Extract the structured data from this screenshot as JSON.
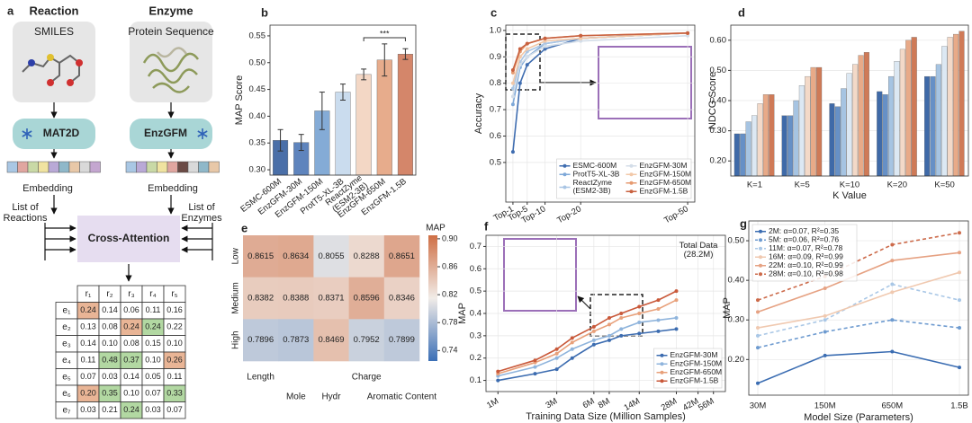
{
  "diagram": {
    "panel": "a",
    "reaction_title": "Reaction",
    "enzyme_title": "Enzyme",
    "reaction_input": "SMILES",
    "enzyme_input": "Protein Sequence",
    "reaction_encoder": "MAT2D",
    "enzyme_encoder": "EnzGFM",
    "reaction_embedding": "Embedding",
    "enzyme_embedding": "Embedding",
    "reaction_list": "List of\nReactions",
    "enzyme_list": "List of\nEnzymes",
    "attention": "Cross-Attention",
    "table": {
      "columns": [
        "r₁",
        "r₂",
        "r₃",
        "r₄",
        "r₅"
      ],
      "rows": [
        "e₁",
        "e₂",
        "e₃",
        "e₄",
        "e₅",
        "e₆",
        "e₇"
      ],
      "values": [
        [
          "0.24",
          "0.14",
          "0.06",
          "0.11",
          "0.16"
        ],
        [
          "0.13",
          "0.08",
          "0.24",
          "0.24",
          "0.22"
        ],
        [
          "0.14",
          "0.10",
          "0.08",
          "0.15",
          "0.10"
        ],
        [
          "0.11",
          "0.48",
          "0.37",
          "0.10",
          "0.26"
        ],
        [
          "0.07",
          "0.03",
          "0.14",
          "0.05",
          "0.11"
        ],
        [
          "0.20",
          "0.35",
          "0.10",
          "0.07",
          "0.33"
        ],
        [
          "0.03",
          "0.21",
          "0.24",
          "0.03",
          "0.07"
        ]
      ],
      "cell_colors": [
        [
          "#e9b596",
          null,
          null,
          null,
          null
        ],
        [
          null,
          null,
          "#e9b596",
          "#b2d8a2",
          null
        ],
        [
          null,
          null,
          null,
          null,
          null
        ],
        [
          null,
          "#b2d8a2",
          "#b2d8a2",
          null,
          "#e9b596"
        ],
        [
          null,
          null,
          null,
          null,
          null
        ],
        [
          "#e9b596",
          "#b2d8a2",
          null,
          null,
          "#b2d8a2"
        ],
        [
          null,
          null,
          "#b2d8a2",
          null,
          null
        ]
      ]
    }
  },
  "chart_data": [
    {
      "type": "bar",
      "panel": "b",
      "ylabel": "MAP Score",
      "categories": [
        "ESMC-600M",
        "EnzGFM-30M",
        "EnzGFM-150M",
        "ProtT5-XL-3B",
        "ReactZyme\n(ESM2-3B)",
        "EnzGFM-650M",
        "EnzGFM-1.5B"
      ],
      "values": [
        0.355,
        0.351,
        0.41,
        0.445,
        0.478,
        0.505,
        0.516
      ],
      "errors": [
        0.02,
        0.015,
        0.035,
        0.015,
        0.01,
        0.03,
        0.01
      ],
      "colors": [
        "#4a6fa8",
        "#5e84bd",
        "#84abd6",
        "#cadcee",
        "#f3d7c5",
        "#e7ac8c",
        "#d4866a"
      ],
      "ylim": [
        0.29,
        0.57
      ],
      "yticks": [
        {
          "value": 0.3,
          "label": "0.30"
        },
        0.35,
        {
          "value": 0.4,
          "label": "0.40"
        },
        0.45,
        {
          "value": 0.5,
          "label": "0.50"
        },
        0.55
      ],
      "annotation": "***"
    },
    {
      "type": "line",
      "panel": "c",
      "ylabel": "Accuracy",
      "x": [
        1,
        3,
        5,
        10,
        20,
        50
      ],
      "xlim": [
        -1,
        52
      ],
      "xticks": [
        {
          "value": 1,
          "label": "Top-1"
        },
        {
          "value": 5,
          "label": "Top-5"
        },
        {
          "value": 10,
          "label": "Top-10"
        },
        {
          "value": 20,
          "label": "Top-20"
        },
        {
          "value": 50,
          "label": "Top-50"
        }
      ],
      "ylim": [
        0.35,
        1.02
      ],
      "yticks": [
        0.5,
        0.6,
        0.7,
        0.8,
        0.9,
        {
          "value": 1,
          "label": "1.0"
        }
      ],
      "grid": true,
      "legend": "lower right",
      "legend_ncol": 2,
      "series": [
        {
          "name": "ESMC-600M",
          "color": "#3f6db0",
          "values": [
            0.54,
            0.8,
            0.87,
            0.93,
            0.97,
            0.99
          ]
        },
        {
          "name": "ProtT5-XL-3B",
          "color": "#7ea8d8",
          "values": [
            0.72,
            0.86,
            0.9,
            0.95,
            0.97,
            0.99
          ]
        },
        {
          "name": "ReactZyme\n(ESM2-3B)",
          "color": "#a9c5e4",
          "values": [
            0.78,
            0.88,
            0.92,
            0.95,
            0.97,
            0.99
          ]
        },
        {
          "name": "EnzGFM-30M",
          "color": "#d3dde8",
          "values": [
            0.75,
            0.87,
            0.9,
            0.94,
            0.96,
            0.98
          ]
        },
        {
          "name": "EnzGFM-150M",
          "color": "#f2c8a8",
          "values": [
            0.8,
            0.9,
            0.93,
            0.96,
            0.97,
            0.99
          ]
        },
        {
          "name": "EnzGFM-650M",
          "color": "#e69a70",
          "values": [
            0.84,
            0.92,
            0.95,
            0.97,
            0.98,
            0.99
          ]
        },
        {
          "name": "EnzGFM-1.5B",
          "color": "#c8613f",
          "values": [
            0.85,
            0.93,
            0.95,
            0.97,
            0.98,
            0.99
          ]
        }
      ]
    },
    {
      "type": "bar",
      "panel": "d",
      "xlabel": "K Value",
      "ylabel": "NDCG Score",
      "categories": [
        "K=1",
        "K=5",
        "K=10",
        "K=20",
        "K=50"
      ],
      "ylim": [
        0.15,
        0.65
      ],
      "yticks": [
        {
          "value": 0.2,
          "label": "0.20"
        },
        {
          "value": 0.3,
          "label": "0.30"
        },
        {
          "value": 0.4,
          "label": "0.40"
        },
        {
          "value": 0.5,
          "label": "0.50"
        },
        {
          "value": 0.6,
          "label": "0.60"
        }
      ],
      "grid": true,
      "series": [
        {
          "color": "#3f6aa8",
          "values": [
            0.29,
            0.35,
            0.39,
            0.43,
            0.48
          ]
        },
        {
          "color": "#6690c6",
          "values": [
            0.29,
            0.35,
            0.38,
            0.42,
            0.48
          ]
        },
        {
          "color": "#a6c4e2",
          "values": [
            0.33,
            0.4,
            0.44,
            0.48,
            0.52
          ]
        },
        {
          "color": "#dce8f3",
          "values": [
            0.35,
            0.45,
            0.49,
            0.53,
            0.58
          ]
        },
        {
          "color": "#f3d9c8",
          "values": [
            0.39,
            0.48,
            0.52,
            0.57,
            0.61
          ]
        },
        {
          "color": "#e8aa88",
          "values": [
            0.42,
            0.51,
            0.55,
            0.6,
            0.62
          ]
        },
        {
          "color": "#cf7a57",
          "values": [
            0.42,
            0.51,
            0.56,
            0.61,
            0.63
          ]
        }
      ]
    },
    {
      "type": "heatmap",
      "panel": "e",
      "rows": [
        "Low",
        "Medium",
        "High"
      ],
      "columns": [
        "Length",
        "Mole",
        "Hydr",
        "Charge",
        "Aromatic Content"
      ],
      "values": [
        [
          0.8615,
          0.8634,
          0.8055,
          0.8288,
          0.8651
        ],
        [
          0.8382,
          0.8388,
          0.8371,
          0.8596,
          0.8346
        ],
        [
          0.7896,
          0.7873,
          0.8469,
          0.7952,
          0.7899
        ]
      ],
      "colorbar_label": "MAP",
      "clim": [
        0.725,
        0.905
      ],
      "cticks": [
        0.74,
        0.78,
        0.82,
        0.86,
        {
          "value": 0.9,
          "label": "0.90"
        }
      ],
      "cmap": [
        "#3b6fb6",
        "#f1ece8",
        "#cf6f45"
      ]
    },
    {
      "type": "line",
      "panel": "f",
      "xlabel": "Training Data Size (Million Samples)",
      "ylabel": "MAP",
      "xscale": "log",
      "x": [
        1,
        2,
        3,
        4,
        6,
        8,
        10,
        14,
        20,
        28
      ],
      "xlim": [
        0.8,
        70
      ],
      "xticks": [
        {
          "value": 1,
          "label": "1M"
        },
        {
          "value": 3,
          "label": "3M"
        },
        {
          "value": 6,
          "label": "6M"
        },
        {
          "value": 8,
          "label": "8M"
        },
        {
          "value": 14,
          "label": "14M"
        },
        {
          "value": 28,
          "label": "28M"
        },
        {
          "value": 42,
          "label": "42M"
        },
        {
          "value": 56,
          "label": "56M"
        }
      ],
      "ylim": [
        0.05,
        0.75
      ],
      "yticks": [
        0.1,
        0.2,
        0.3,
        0.4,
        0.5,
        0.6,
        0.7
      ],
      "grid": true,
      "legend": "lower right",
      "annotation": "Total Data\n(28.2M)",
      "series": [
        {
          "name": "EnzGFM-30M",
          "color": "#3c6cb0",
          "values": [
            0.1,
            0.13,
            0.15,
            0.2,
            0.26,
            0.28,
            0.3,
            0.31,
            0.32,
            0.33
          ]
        },
        {
          "name": "EnzGFM-150M",
          "color": "#8fb4dc",
          "values": [
            0.12,
            0.16,
            0.2,
            0.24,
            0.28,
            0.3,
            0.33,
            0.36,
            0.37,
            0.38
          ]
        },
        {
          "name": "EnzGFM-650M",
          "color": "#e8a07a",
          "values": [
            0.13,
            0.18,
            0.22,
            0.27,
            0.32,
            0.35,
            0.38,
            0.4,
            0.42,
            0.46
          ]
        },
        {
          "name": "EnzGFM-1.5B",
          "color": "#c9593a",
          "values": [
            0.14,
            0.19,
            0.24,
            0.29,
            0.34,
            0.38,
            0.4,
            0.43,
            0.46,
            0.5
          ]
        }
      ]
    },
    {
      "type": "line",
      "panel": "g",
      "xlabel": "Model Size (Parameters)",
      "ylabel": "MAP",
      "categories": [
        "30M",
        "150M",
        "650M",
        "1.5B"
      ],
      "ylim": [
        0.11,
        0.55
      ],
      "yticks": [
        {
          "value": 0.2,
          "label": "0.20"
        },
        {
          "value": 0.3,
          "label": "0.30"
        },
        {
          "value": 0.4,
          "label": "0.40"
        },
        {
          "value": 0.5,
          "label": "0.50"
        }
      ],
      "grid": true,
      "legend": "upper left",
      "series": [
        {
          "name": "2M: α=0.07, R²=0.35",
          "color": "#3b6db2",
          "values": [
            0.14,
            0.21,
            0.22,
            0.18
          ]
        },
        {
          "name": "5M: α=0.06, R²=0.76",
          "color": "#6e9bd0",
          "linestyle": "dashed",
          "values": [
            0.23,
            0.27,
            0.3,
            0.28
          ]
        },
        {
          "name": "11M: α=0.07, R²=0.78",
          "color": "#a9c7e6",
          "linestyle": "dashed",
          "values": [
            0.26,
            0.3,
            0.39,
            0.35
          ]
        },
        {
          "name": "16M: α=0.09, R²=0.99",
          "color": "#f0c9b0",
          "values": [
            0.28,
            0.31,
            0.37,
            0.42
          ]
        },
        {
          "name": "22M: α=0.10, R²=0.99",
          "color": "#e6a283",
          "values": [
            0.32,
            0.38,
            0.45,
            0.47
          ]
        },
        {
          "name": "28M: α=0.10, R²=0.98",
          "color": "#cc6a4a",
          "linestyle": "dashed",
          "values": [
            0.35,
            0.41,
            0.49,
            0.52
          ]
        }
      ]
    }
  ]
}
